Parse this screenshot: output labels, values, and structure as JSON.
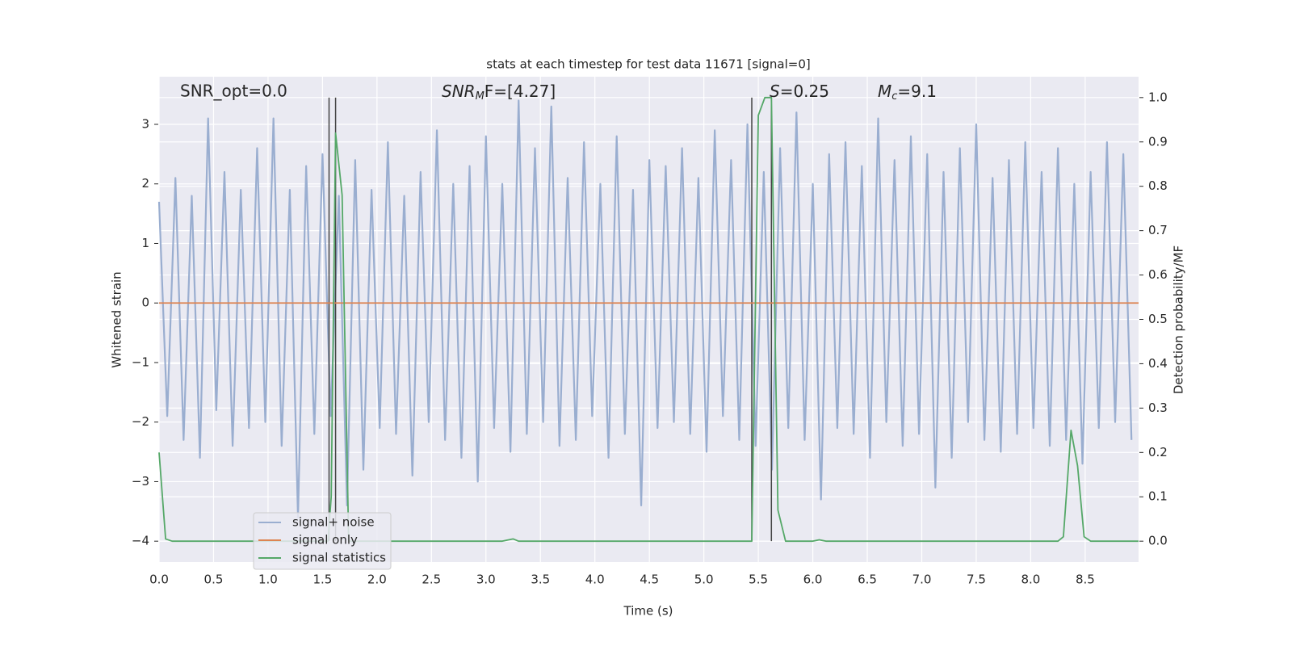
{
  "chart_data": {
    "type": "line",
    "title": "stats at each timestep for test data 11671 [signal=0]",
    "xlabel": "Time (s)",
    "ylabel": "Whitened strain",
    "y2label": "Detection probability/MF",
    "annotations": [
      {
        "text": "SNR_opt=0.0"
      },
      {
        "base": "SNR",
        "sub": "M",
        "rest": "F=[4.27]"
      },
      {
        "base": "S",
        "rest": "=0.25"
      },
      {
        "base": "M",
        "sub": "c",
        "rest": "=9.1"
      }
    ],
    "xlim": [
      0,
      8.99
    ],
    "ylim": [
      -4.35,
      3.8
    ],
    "y2lim": [
      -0.047,
      1.047
    ],
    "xticks": [
      {
        "value": 0,
        "label": "0.0"
      },
      {
        "value": 0.5,
        "label": "0.5"
      },
      {
        "value": 1,
        "label": "1.0"
      },
      {
        "value": 1.5,
        "label": "1.5"
      },
      {
        "value": 2,
        "label": "2.0"
      },
      {
        "value": 2.5,
        "label": "2.5"
      },
      {
        "value": 3,
        "label": "3.0"
      },
      {
        "value": 3.5,
        "label": "3.5"
      },
      {
        "value": 4,
        "label": "4.0"
      },
      {
        "value": 4.5,
        "label": "4.5"
      },
      {
        "value": 5,
        "label": "5.0"
      },
      {
        "value": 5.5,
        "label": "5.5"
      },
      {
        "value": 6,
        "label": "6.0"
      },
      {
        "value": 6.5,
        "label": "6.5"
      },
      {
        "value": 7,
        "label": "7.0"
      },
      {
        "value": 7.5,
        "label": "7.5"
      },
      {
        "value": 8,
        "label": "8.0"
      },
      {
        "value": 8.5,
        "label": "8.5"
      }
    ],
    "yticks": [
      {
        "value": -4,
        "label": "−4"
      },
      {
        "value": -3,
        "label": "−3"
      },
      {
        "value": -2,
        "label": "−2"
      },
      {
        "value": -1,
        "label": "−1"
      },
      0,
      1,
      2,
      3
    ],
    "y2ticks": [
      {
        "value": 0,
        "label": "0.0"
      },
      {
        "value": 0.1,
        "label": "0.1"
      },
      {
        "value": 0.2,
        "label": "0.2"
      },
      {
        "value": 0.3,
        "label": "0.3"
      },
      {
        "value": 0.4,
        "label": "0.4"
      },
      {
        "value": 0.5,
        "label": "0.5"
      },
      {
        "value": 0.6,
        "label": "0.6"
      },
      {
        "value": 0.7,
        "label": "0.7"
      },
      {
        "value": 0.8,
        "label": "0.8"
      },
      {
        "value": 0.9,
        "label": "0.9"
      },
      {
        "value": 1,
        "label": "1.0"
      }
    ],
    "grid": true,
    "legend": "lower left",
    "vlines": {
      "color": "#444444",
      "x": [
        1.56,
        1.62,
        5.44,
        5.62
      ]
    },
    "series": [
      {
        "name": "signal+ noise",
        "color": "#9aaed0",
        "x": [
          0,
          0.075,
          0.15,
          0.225,
          0.3,
          0.375,
          0.45,
          0.525,
          0.6,
          0.675,
          0.75,
          0.825,
          0.9,
          0.975,
          1.05,
          1.125,
          1.2,
          1.275,
          1.35,
          1.425,
          1.5,
          1.575,
          1.65,
          1.725,
          1.8,
          1.875,
          1.95,
          2.025,
          2.1,
          2.175,
          2.25,
          2.325,
          2.4,
          2.475,
          2.55,
          2.625,
          2.7,
          2.775,
          2.85,
          2.925,
          3,
          3.075,
          3.15,
          3.225,
          3.3,
          3.375,
          3.45,
          3.525,
          3.6,
          3.675,
          3.75,
          3.825,
          3.9,
          3.975,
          4.05,
          4.125,
          4.2,
          4.275,
          4.35,
          4.425,
          4.5,
          4.575,
          4.65,
          4.725,
          4.8,
          4.875,
          4.95,
          5.025,
          5.1,
          5.175,
          5.25,
          5.325,
          5.4,
          5.475,
          5.55,
          5.625,
          5.7,
          5.775,
          5.85,
          5.925,
          6,
          6.075,
          6.15,
          6.225,
          6.3,
          6.375,
          6.45,
          6.525,
          6.6,
          6.675,
          6.75,
          6.825,
          6.9,
          6.975,
          7.05,
          7.125,
          7.2,
          7.275,
          7.35,
          7.425,
          7.5,
          7.575,
          7.65,
          7.725,
          7.8,
          7.875,
          7.95,
          8.025,
          8.1,
          8.175,
          8.25,
          8.325,
          8.4,
          8.475,
          8.55,
          8.625,
          8.7,
          8.775,
          8.85,
          8.925
        ],
        "values": [
          1.7,
          -1.9,
          2.1,
          -2.3,
          1.8,
          -2.6,
          3.1,
          -1.8,
          2.2,
          -2.4,
          1.9,
          -2.1,
          2.6,
          -2.0,
          3.1,
          -2.4,
          1.9,
          -3.6,
          2.3,
          -2.2,
          2.5,
          -1.9,
          1.8,
          -3.4,
          2.4,
          -2.8,
          1.9,
          -2.1,
          2.7,
          -2.2,
          1.8,
          -2.9,
          2.2,
          -2.0,
          2.9,
          -2.3,
          2.0,
          -2.6,
          2.3,
          -3.0,
          2.8,
          -2.1,
          2.0,
          -2.5,
          3.4,
          -2.2,
          2.6,
          -2.0,
          3.3,
          -2.4,
          2.1,
          -2.3,
          2.7,
          -1.9,
          2.0,
          -2.6,
          2.8,
          -2.2,
          1.9,
          -3.4,
          2.4,
          -2.1,
          2.3,
          -2.0,
          2.6,
          -2.2,
          2.1,
          -2.5,
          2.9,
          -1.9,
          2.4,
          -2.3,
          3.0,
          -2.4,
          2.2,
          -2.8,
          2.6,
          -2.1,
          3.2,
          -2.3,
          2.0,
          -3.3,
          2.5,
          -2.1,
          2.7,
          -2.2,
          2.3,
          -2.6,
          3.1,
          -2.0,
          2.4,
          -2.4,
          2.8,
          -2.2,
          2.5,
          -3.1,
          2.2,
          -2.6,
          2.6,
          -2.0,
          3.0,
          -2.3,
          2.1,
          -2.5,
          2.4,
          -2.2,
          2.7,
          -2.1,
          2.2,
          -2.4,
          2.6,
          -2.3,
          2.0,
          -2.7,
          2.2,
          -2.1,
          2.7,
          -2.0,
          2.5,
          -2.3
        ]
      },
      {
        "name": "signal only",
        "color": "#dd8452",
        "x": [
          0,
          8.99
        ],
        "values": [
          0,
          0
        ]
      },
      {
        "name": "signal statistics",
        "color": "#55a868",
        "axis": "y2",
        "x": [
          0,
          0.06,
          0.12,
          1.55,
          1.58,
          1.62,
          1.68,
          1.74,
          3.15,
          3.25,
          3.3,
          5.44,
          5.5,
          5.56,
          5.62,
          5.68,
          5.75,
          6.0,
          6.06,
          6.12,
          8.25,
          8.3,
          8.37,
          8.43,
          8.49,
          8.55,
          8.99
        ],
        "values": [
          0.2,
          0.005,
          0,
          0,
          0.1,
          0.92,
          0.78,
          0,
          0,
          0.005,
          0,
          0,
          0.96,
          1.0,
          1.0,
          0.07,
          0,
          0,
          0.003,
          0,
          0,
          0.01,
          0.25,
          0.17,
          0.01,
          0,
          0
        ]
      }
    ]
  }
}
